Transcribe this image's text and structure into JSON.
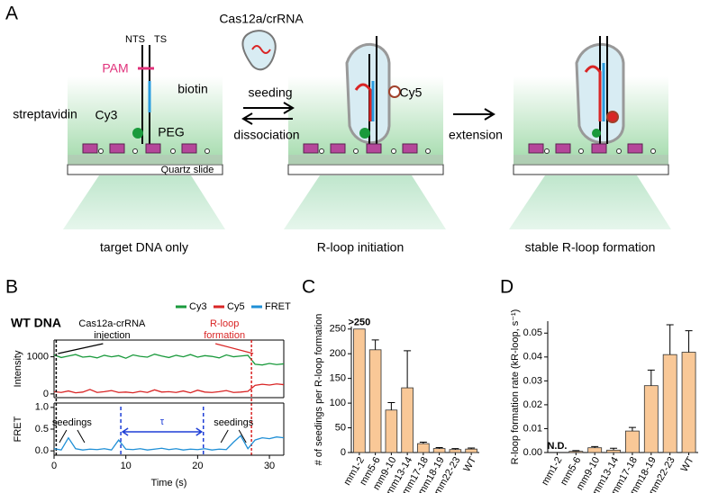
{
  "panel_labels": [
    "A",
    "B",
    "C",
    "D"
  ],
  "diagram": {
    "reagent": "Cas12a/crRNA",
    "strand_nts": "NTS",
    "strand_ts": "TS",
    "pam": "PAM",
    "cy3": "Cy3",
    "cy5": "Cy5",
    "streptavidin": "streptavidin",
    "biotin": "biotin",
    "peg": "PEG",
    "slide": "Quartz slide",
    "seeding": "seeding",
    "dissociation": "dissociation",
    "extension": "extension",
    "stages": [
      "target DNA only",
      "R-loop initiation",
      "stable R-loop formation"
    ]
  },
  "trace_title": "WT DNA",
  "chart_data": [
    {
      "type": "line",
      "y_label": "Intensity",
      "x": [
        0,
        1,
        2,
        3,
        4,
        5,
        6,
        7,
        8,
        9,
        10,
        11,
        12,
        13,
        14,
        15,
        16,
        17,
        18,
        19,
        20,
        21,
        22,
        23,
        24,
        25,
        26,
        27,
        28,
        29,
        30,
        31,
        32
      ],
      "xlim": [
        0,
        32
      ],
      "ylim": [
        -100,
        1450
      ],
      "yticks": [
        0,
        1000
      ],
      "series": [
        {
          "name": "Cy3",
          "color": "#1a9a3c",
          "values": [
            1050,
            980,
            1020,
            1060,
            990,
            1010,
            970,
            1040,
            1000,
            1030,
            960,
            1050,
            1010,
            990,
            1070,
            1020,
            980,
            1040,
            1000,
            1060,
            990,
            1030,
            1010,
            970,
            1050,
            1000,
            1020,
            1040,
            800,
            780,
            820,
            790,
            810
          ]
        },
        {
          "name": "Cy5",
          "color": "#d92525",
          "values": [
            60,
            40,
            80,
            30,
            50,
            120,
            40,
            60,
            90,
            40,
            50,
            30,
            70,
            40,
            110,
            50,
            60,
            40,
            80,
            30,
            100,
            50,
            40,
            60,
            90,
            40,
            50,
            70,
            230,
            260,
            240,
            270,
            250
          ]
        }
      ],
      "annotations": [
        {
          "text": "Cas12a-crRNA injection",
          "x": 0.3,
          "color": "#000000"
        },
        {
          "text": "R-loop formation",
          "x": 27.5,
          "color": "#d92525"
        }
      ]
    },
    {
      "type": "line",
      "y_label": "FRET",
      "x_label": "Time (s)",
      "x": [
        0,
        1,
        2,
        3,
        4,
        5,
        6,
        7,
        8,
        9,
        10,
        11,
        12,
        13,
        14,
        15,
        16,
        17,
        18,
        19,
        20,
        21,
        22,
        23,
        24,
        25,
        26,
        27,
        28,
        29,
        30,
        31,
        32
      ],
      "xlim": [
        0,
        32
      ],
      "xticks": [
        0,
        10,
        20,
        30
      ],
      "ylim": [
        -0.1,
        1.1
      ],
      "yticks": [
        {
          "value": 0,
          "label": "0.0"
        },
        {
          "value": 0.5,
          "label": "0.5"
        },
        {
          "value": 1,
          "label": "1.0"
        }
      ],
      "series": [
        {
          "name": "FRET",
          "color": "#1f8fd6",
          "values": [
            0.05,
            0.02,
            0.3,
            0.05,
            0.02,
            0.04,
            0.03,
            0.05,
            0.02,
            0.25,
            0.04,
            0.03,
            0.05,
            0.02,
            0.04,
            0.06,
            0.03,
            0.05,
            0.02,
            0.04,
            0.03,
            0.05,
            0.02,
            0.04,
            0.03,
            0.2,
            0.35,
            0.05,
            0.25,
            0.3,
            0.28,
            0.32,
            0.3
          ]
        }
      ],
      "annotations": [
        {
          "text": "seedings",
          "x": 2.5
        },
        {
          "text": "seedings",
          "x": 25
        }
      ],
      "dwell": {
        "label": "τ",
        "start": 9.3,
        "end": 20.8,
        "color": "#1f3fd6"
      }
    },
    {
      "type": "bar",
      "y_label": "# of seedings per R-loop formation",
      "categories": [
        "mm1-2",
        "mm5-6",
        "mm9-10",
        "mm13-14",
        "mm17-18",
        "mm18-19",
        "mm22-23",
        "WT"
      ],
      "values": [
        250,
        208,
        86,
        131,
        18,
        8,
        6,
        7
      ],
      "errors": [
        0,
        20,
        15,
        75,
        3,
        2,
        2,
        2
      ],
      "value_labels": [
        ">250",
        null,
        null,
        null,
        null,
        null,
        null,
        null
      ],
      "color": "#f9c897",
      "ylim": [
        0,
        255
      ],
      "yticks": [
        0,
        50,
        100,
        150,
        200,
        250
      ]
    },
    {
      "type": "bar",
      "y_label": "R-loop formation rate (kR-loop, s⁻¹)",
      "categories": [
        "mm1-2",
        "mm5-6",
        "mm9-10",
        "mm13-14",
        "mm17-18",
        "mm18-19",
        "mm22-23",
        "WT"
      ],
      "values": [
        null,
        0.0005,
        0.002,
        0.001,
        0.009,
        0.028,
        0.041,
        0.042
      ],
      "errors": [
        null,
        0.0003,
        0.0005,
        0.0008,
        0.0015,
        0.0065,
        0.0125,
        0.009
      ],
      "value_labels": [
        "N.D.",
        null,
        null,
        null,
        null,
        null,
        null,
        null
      ],
      "color": "#f9c897",
      "ylim": [
        0,
        0.055
      ],
      "yticks": [
        {
          "value": 0,
          "label": "0.00"
        },
        {
          "value": 0.01,
          "label": "0.01"
        },
        {
          "value": 0.02,
          "label": "0.02"
        },
        {
          "value": 0.03,
          "label": "0.03"
        },
        {
          "value": 0.04,
          "label": "0.04"
        },
        {
          "value": 0.05,
          "label": "0.05"
        }
      ]
    }
  ]
}
